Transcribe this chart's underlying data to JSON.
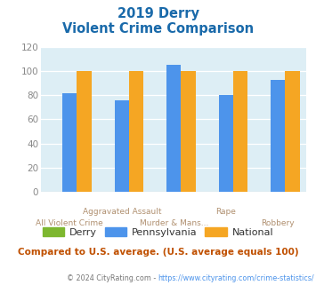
{
  "title_line1": "2019 Derry",
  "title_line2": "Violent Crime Comparison",
  "categories": [
    "All Violent Crime",
    "Aggravated Assault",
    "Murder & Mans...",
    "Rape",
    "Robbery"
  ],
  "series": {
    "Derry": [
      0,
      0,
      0,
      0,
      0
    ],
    "Pennsylvania": [
      82,
      76,
      105,
      80,
      93
    ],
    "National": [
      100,
      100,
      100,
      100,
      100
    ]
  },
  "colors": {
    "Derry": "#7db72f",
    "Pennsylvania": "#4d94eb",
    "National": "#f5a623"
  },
  "ylim": [
    0,
    120
  ],
  "yticks": [
    0,
    20,
    40,
    60,
    80,
    100,
    120
  ],
  "plot_bg_color": "#ddeef5",
  "title_color": "#1a6aaa",
  "xlabel_color": "#b09070",
  "ytick_color": "#888888",
  "legend_label_color": "#333333",
  "footer_text": "Compared to U.S. average. (U.S. average equals 100)",
  "footer_color": "#c05000",
  "copyright_prefix": "© 2024 CityRating.com - ",
  "copyright_link": "https://www.cityrating.com/crime-statistics/",
  "copyright_color": "#777777",
  "copyright_link_color": "#4d94eb",
  "bar_width": 0.28
}
